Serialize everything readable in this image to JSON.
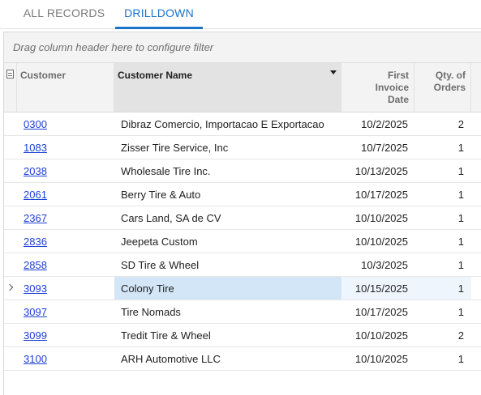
{
  "tabs": [
    {
      "label": "ALL RECORDS",
      "active": false
    },
    {
      "label": "DRILLDOWN",
      "active": true
    }
  ],
  "grid": {
    "group_placeholder": "Drag column header here to configure filter",
    "columns": {
      "customer": "Customer",
      "customer_name": "Customer Name",
      "first_invoice_date": "First\nInvoice\nDate",
      "qty_of_orders": "Qty. of\nOrders"
    },
    "rows": [
      {
        "customer": "0300",
        "name": "Dibraz Comercio, Importacao E Exportacao",
        "date": "10/2/2025",
        "qty": "2"
      },
      {
        "customer": "1083",
        "name": "Zisser Tire Service, Inc",
        "date": "10/7/2025",
        "qty": "1"
      },
      {
        "customer": "2038",
        "name": "Wholesale Tire Inc.",
        "date": "10/13/2025",
        "qty": "1"
      },
      {
        "customer": "2061",
        "name": "Berry Tire & Auto",
        "date": "10/17/2025",
        "qty": "1"
      },
      {
        "customer": "2367",
        "name": "Cars Land, SA de CV",
        "date": "10/10/2025",
        "qty": "1"
      },
      {
        "customer": "2836",
        "name": "Jeepeta Custom",
        "date": "10/10/2025",
        "qty": "1"
      },
      {
        "customer": "2858",
        "name": "SD Tire & Wheel",
        "date": "10/3/2025",
        "qty": "1"
      },
      {
        "customer": "3093",
        "name": "Colony Tire",
        "date": "10/15/2025",
        "qty": "1",
        "active": true
      },
      {
        "customer": "3097",
        "name": "Tire Nomads",
        "date": "10/17/2025",
        "qty": "1"
      },
      {
        "customer": "3099",
        "name": "Tredit Tire & Wheel",
        "date": "10/10/2025",
        "qty": "2"
      },
      {
        "customer": "3100",
        "name": "ARH Automotive LLC",
        "date": "10/10/2025",
        "qty": "1"
      }
    ]
  },
  "colors": {
    "accent": "#1a73c8",
    "link": "#1c3fd6",
    "selected_row": "#d3e6f7"
  },
  "icons": {
    "column_filter": "column-filter-icon",
    "sort": "sort-descending-icon",
    "row_indicator": "chevron-right-icon"
  }
}
